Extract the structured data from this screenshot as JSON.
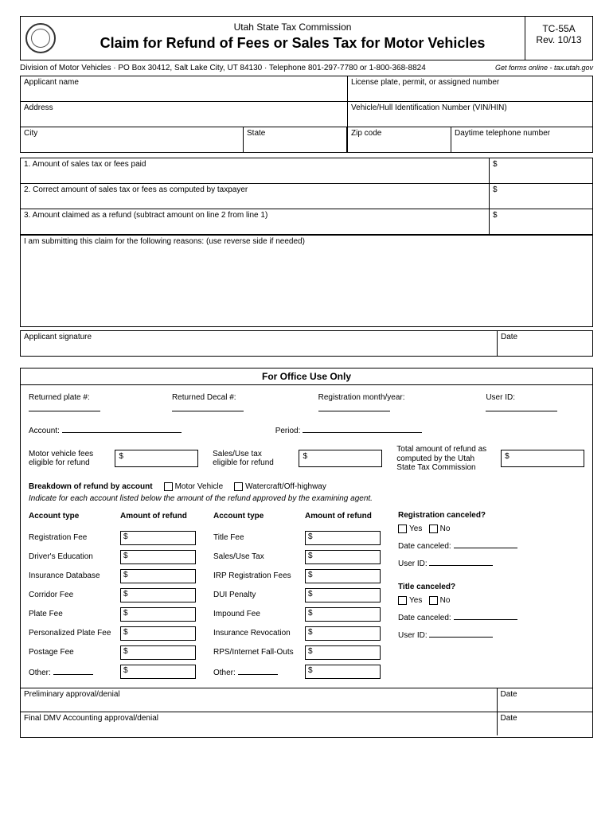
{
  "header": {
    "agency": "Utah State Tax Commission",
    "title": "Claim for Refund of Fees or Sales Tax for Motor Vehicles",
    "form_code": "TC-55A",
    "revision": "Rev. 10/13"
  },
  "division_line": "Division of Motor Vehicles · PO Box 30412, Salt Lake City, UT 84130 · Telephone 801-297-7780 or 1-800-368-8824",
  "get_forms": "Get forms online - tax.utah.gov",
  "applicant_fields": {
    "name": "Applicant name",
    "license": "License plate, permit, or assigned number",
    "address": "Address",
    "vin": "Vehicle/Hull Identification Number (VIN/HIN)",
    "city": "City",
    "state": "State",
    "zip": "Zip code",
    "phone": "Daytime telephone number"
  },
  "amounts": {
    "line1": "1.  Amount of sales tax or fees paid",
    "line2": "2.  Correct amount of sales tax or fees as computed by taxpayer",
    "line3": "3.  Amount claimed as a refund (subtract amount on line 2 from line 1)",
    "dollar": "$"
  },
  "reasons": "I am submitting this claim for the following reasons: (use reverse side if needed)",
  "signature": {
    "sig": "Applicant signature",
    "date": "Date"
  },
  "office": {
    "title": "For Office Use Only",
    "returned_plate": "Returned plate #:",
    "returned_decal": "Returned Decal #:",
    "reg_month": "Registration month/year:",
    "user_id": "User ID:",
    "account": "Account:",
    "period": "Period:",
    "mv_fees": "Motor vehicle fees eligible for refund",
    "sales_use": "Sales/Use tax eligible for refund",
    "total_refund": "Total amount of refund as computed by the Utah State Tax Commission",
    "breakdown": "Breakdown of refund by account",
    "motor_vehicle": "Motor Vehicle",
    "watercraft": "Watercraft/Off-highway",
    "indicate": "Indicate for each account listed below the amount of the refund approved by the examining agent.",
    "col_account": "Account type",
    "col_amount": "Amount of refund",
    "left_types": [
      "Registration Fee",
      "Driver's Education",
      "Insurance Database",
      "Corridor Fee",
      "Plate Fee",
      "Personalized Plate Fee",
      "Postage Fee",
      "Other:"
    ],
    "right_types": [
      "Title Fee",
      "Sales/Use Tax",
      "IRP Registration Fees",
      "DUI Penalty",
      "Impound Fee",
      "Insurance Revocation",
      "RPS/Internet Fall-Outs",
      "Other:"
    ],
    "reg_canceled": "Registration canceled?",
    "title_canceled": "Title canceled?",
    "yes": "Yes",
    "no": "No",
    "date_canceled": "Date canceled:",
    "preliminary": "Preliminary approval/denial",
    "final": "Final DMV Accounting approval/denial",
    "date": "Date"
  }
}
